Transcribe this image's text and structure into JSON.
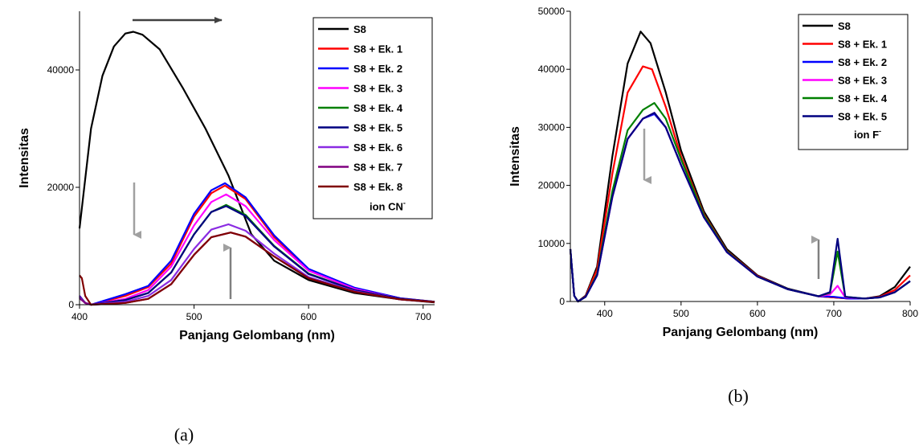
{
  "chart_data": [
    {
      "type": "line",
      "panel_label": "(a)",
      "xlabel": "Panjang Gelombang (nm)",
      "ylabel": "Intensitas",
      "xlim": [
        400,
        710
      ],
      "ylim": [
        0,
        50000
      ],
      "xticks": [
        400,
        500,
        600,
        700
      ],
      "yticks": [
        0,
        20000,
        40000
      ],
      "legend_position": "top-right",
      "legend_note": "ion CN",
      "legend_note_sup": "-",
      "series": [
        {
          "name": "S8",
          "color": "#000000",
          "x": [
            400,
            410,
            420,
            430,
            440,
            447,
            455,
            470,
            490,
            510,
            530,
            550,
            570,
            600,
            640,
            680,
            710
          ],
          "y": [
            13000,
            30000,
            39000,
            44000,
            46200,
            46500,
            46000,
            43500,
            37000,
            30000,
            22000,
            12000,
            7500,
            4200,
            2000,
            900,
            400
          ]
        },
        {
          "name": "S8 + Ek. 1",
          "color": "#ff0000",
          "x": [
            400,
            405,
            410,
            440,
            460,
            480,
            500,
            515,
            527,
            545,
            570,
            600,
            640,
            680,
            710
          ],
          "y": [
            1500,
            300,
            0,
            1500,
            3000,
            7000,
            15000,
            19000,
            20300,
            18000,
            11500,
            6000,
            2800,
            1100,
            500
          ]
        },
        {
          "name": "S8 + Ek. 2",
          "color": "#0000ff",
          "x": [
            400,
            405,
            410,
            440,
            460,
            480,
            500,
            515,
            527,
            545,
            570,
            600,
            640,
            680,
            710
          ],
          "y": [
            1500,
            300,
            0,
            1800,
            3200,
            7500,
            15500,
            19500,
            20700,
            18300,
            11800,
            6100,
            2900,
            1100,
            500
          ]
        },
        {
          "name": "S8 + Ek. 3",
          "color": "#ff00ff",
          "x": [
            400,
            405,
            410,
            440,
            460,
            480,
            500,
            515,
            528,
            545,
            570,
            600,
            640,
            680,
            710
          ],
          "y": [
            1400,
            300,
            0,
            1000,
            2500,
            6500,
            13500,
            17500,
            18800,
            16800,
            11000,
            5800,
            2700,
            1000,
            500
          ]
        },
        {
          "name": "S8 + Ek. 4",
          "color": "#008000",
          "x": [
            400,
            405,
            410,
            440,
            460,
            480,
            500,
            515,
            528,
            545,
            570,
            600,
            640,
            680,
            710
          ],
          "y": [
            1300,
            300,
            0,
            800,
            2000,
            5500,
            12000,
            15800,
            17000,
            15300,
            10000,
            5300,
            2500,
            1000,
            500
          ]
        },
        {
          "name": "S8 + Ek. 5",
          "color": "#000080",
          "x": [
            400,
            405,
            410,
            440,
            460,
            480,
            500,
            515,
            528,
            545,
            570,
            600,
            640,
            680,
            710
          ],
          "y": [
            1300,
            300,
            0,
            800,
            2000,
            5500,
            12000,
            15800,
            16800,
            15100,
            9900,
            5200,
            2500,
            1000,
            500
          ]
        },
        {
          "name": "S8 + Ek. 6",
          "color": "#8a2be2",
          "x": [
            400,
            405,
            410,
            440,
            460,
            480,
            500,
            515,
            530,
            545,
            570,
            600,
            640,
            680,
            710
          ],
          "y": [
            1200,
            300,
            0,
            500,
            1500,
            4200,
            9500,
            12800,
            13700,
            12600,
            8700,
            4700,
            2300,
            900,
            450
          ]
        },
        {
          "name": "S8 + Ek. 7",
          "color": "#800080",
          "x": [
            400,
            405,
            410,
            440,
            460,
            480,
            500,
            515,
            532,
            545,
            570,
            600,
            640,
            680,
            710
          ],
          "y": [
            1100,
            300,
            0,
            300,
            1000,
            3500,
            8500,
            11500,
            12300,
            11600,
            8200,
            4500,
            2200,
            900,
            450
          ]
        },
        {
          "name": "S8 + Ek. 8",
          "color": "#800000",
          "x": [
            400,
            402,
            405,
            410,
            440,
            460,
            480,
            500,
            515,
            532,
            545,
            570,
            600,
            640,
            680,
            710
          ],
          "y": [
            5000,
            4500,
            1500,
            0,
            300,
            1000,
            3500,
            8500,
            11500,
            12300,
            11600,
            8200,
            4500,
            2200,
            900,
            450
          ]
        }
      ]
    },
    {
      "type": "line",
      "panel_label": "(b)",
      "xlabel": "Panjang Gelombang (nm)",
      "ylabel": "Intensitas",
      "xlim": [
        355,
        800
      ],
      "ylim": [
        0,
        50000
      ],
      "xticks": [
        400,
        500,
        600,
        700,
        800
      ],
      "yticks": [
        0,
        10000,
        20000,
        30000,
        40000,
        50000
      ],
      "legend_position": "top-right",
      "legend_note": "ion F",
      "legend_note_sup": "-",
      "series": [
        {
          "name": "S8",
          "color": "#000000",
          "x": [
            355,
            360,
            365,
            375,
            390,
            410,
            430,
            447,
            460,
            480,
            500,
            530,
            560,
            600,
            640,
            680,
            700,
            720,
            740,
            760,
            780,
            800
          ],
          "y": [
            9000,
            1000,
            0,
            1000,
            6000,
            25000,
            41000,
            46500,
            44500,
            36000,
            26000,
            15500,
            9000,
            4500,
            2200,
            900,
            700,
            500,
            500,
            900,
            2500,
            6000
          ]
        },
        {
          "name": "S8 + Ek. 1",
          "color": "#ff0000",
          "x": [
            355,
            360,
            365,
            375,
            390,
            410,
            430,
            450,
            462,
            480,
            500,
            530,
            560,
            600,
            640,
            680,
            700,
            720,
            740,
            760,
            780,
            800
          ],
          "y": [
            9000,
            1000,
            0,
            900,
            5500,
            22000,
            36000,
            40500,
            40000,
            33500,
            25000,
            15000,
            8700,
            4400,
            2100,
            900,
            700,
            500,
            500,
            800,
            2000,
            4500
          ]
        },
        {
          "name": "S8 + Ek. 2",
          "color": "#0000ff",
          "x": [
            355,
            360,
            365,
            375,
            390,
            410,
            430,
            450,
            465,
            480,
            500,
            530,
            560,
            600,
            640,
            680,
            700,
            720,
            740,
            760,
            780,
            800
          ],
          "y": [
            9000,
            1000,
            0,
            800,
            4500,
            18000,
            28000,
            31500,
            32300,
            30000,
            23500,
            14500,
            8500,
            4300,
            2100,
            900,
            800,
            500,
            500,
            700,
            1600,
            3500
          ]
        },
        {
          "name": "S8 + Ek. 3",
          "color": "#ff00ff",
          "x": [
            355,
            360,
            365,
            375,
            390,
            410,
            430,
            450,
            465,
            480,
            500,
            530,
            560,
            600,
            640,
            680,
            695,
            705,
            715,
            740,
            760,
            780,
            800
          ],
          "y": [
            9000,
            1000,
            0,
            800,
            4500,
            18000,
            28000,
            31500,
            32500,
            30000,
            23500,
            14500,
            8500,
            4300,
            2100,
            900,
            1200,
            2700,
            700,
            500,
            700,
            1600,
            3500
          ]
        },
        {
          "name": "S8 + Ek. 4",
          "color": "#008000",
          "x": [
            355,
            360,
            365,
            375,
            390,
            410,
            430,
            450,
            465,
            480,
            500,
            530,
            560,
            600,
            640,
            680,
            695,
            705,
            715,
            740,
            760,
            780,
            800
          ],
          "y": [
            9000,
            1000,
            0,
            800,
            4700,
            19000,
            29500,
            33000,
            34200,
            31500,
            24500,
            14800,
            8600,
            4300,
            2100,
            900,
            1500,
            8600,
            800,
            500,
            700,
            1600,
            3500
          ]
        },
        {
          "name": "S8 + Ek. 5",
          "color": "#000080",
          "x": [
            355,
            360,
            365,
            375,
            390,
            410,
            430,
            450,
            465,
            480,
            500,
            530,
            560,
            600,
            640,
            680,
            695,
            705,
            715,
            740,
            760,
            780,
            800
          ],
          "y": [
            9000,
            1000,
            0,
            800,
            4500,
            18000,
            28000,
            31500,
            32500,
            30000,
            23500,
            14500,
            8500,
            4300,
            2100,
            900,
            1600,
            10800,
            800,
            500,
            700,
            1600,
            3500
          ]
        }
      ]
    }
  ]
}
